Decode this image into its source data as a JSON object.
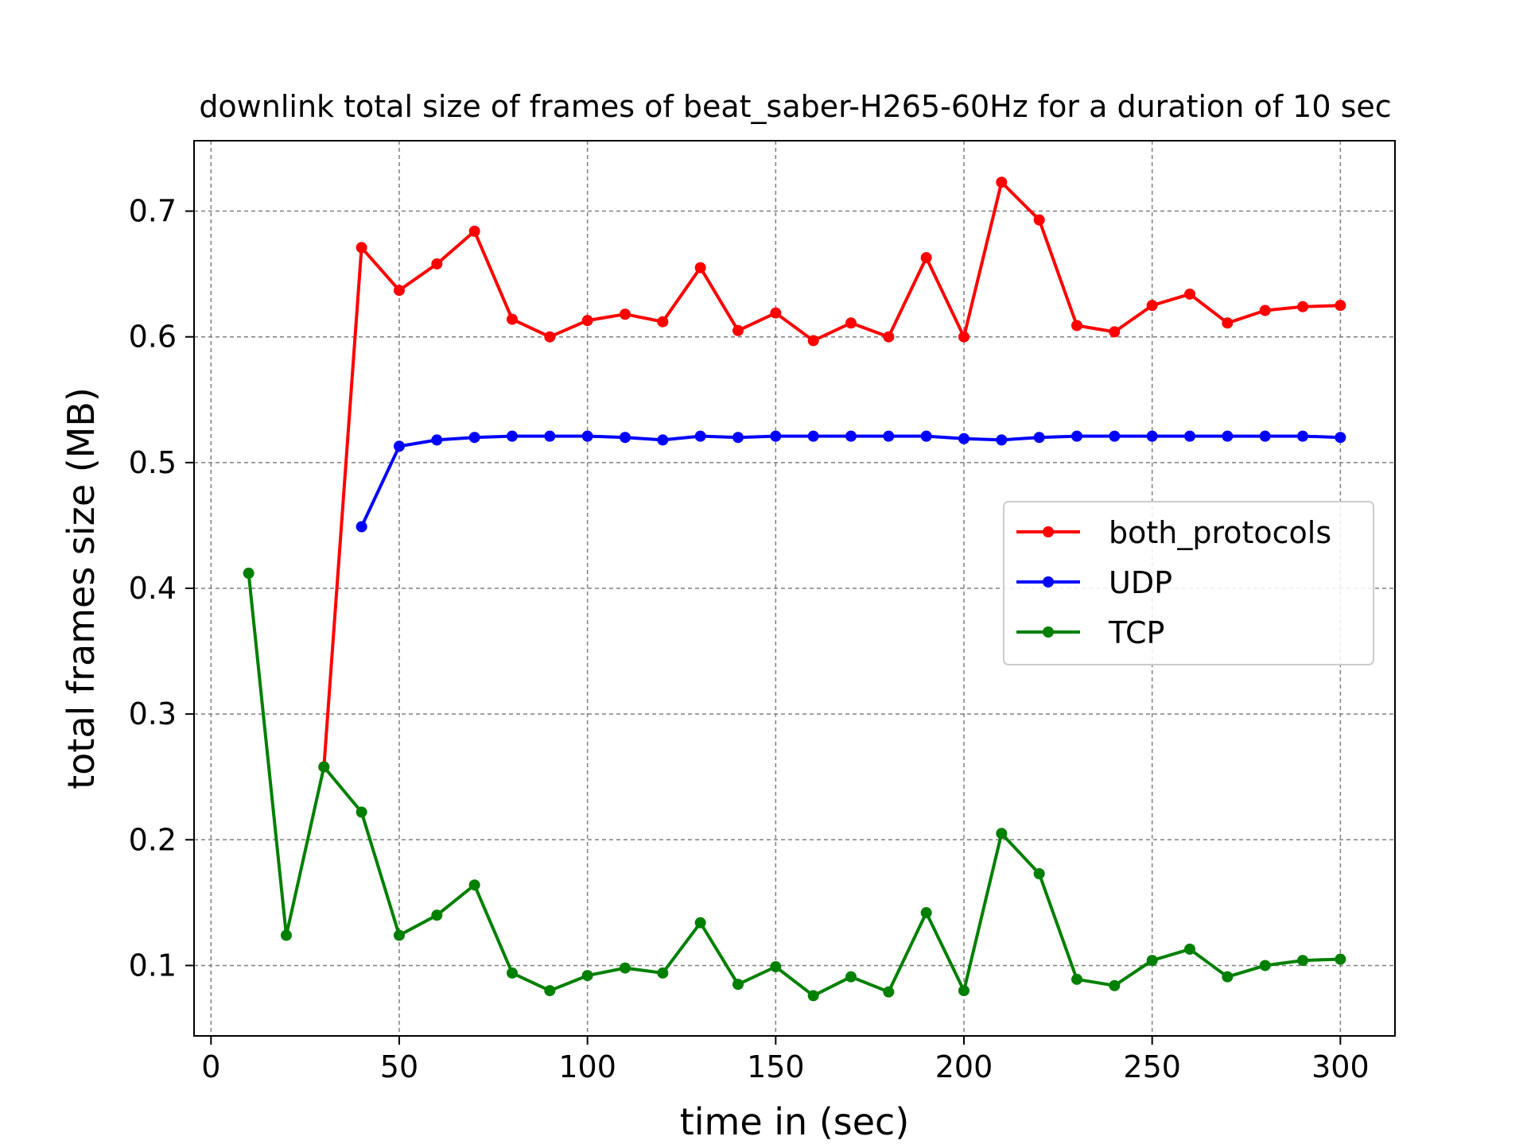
{
  "chart_data": {
    "type": "line",
    "title": "downlink total size of frames of beat_saber-H265-60Hz for a duration of 10 sec",
    "xlabel": "time in (sec)",
    "ylabel": "total frames size (MB)",
    "xlim": [
      -4.5,
      314.5
    ],
    "ylim": [
      0.044,
      0.756
    ],
    "xticks": [
      0,
      50,
      100,
      150,
      200,
      250,
      300
    ],
    "xtick_labels": [
      "0",
      "50",
      "100",
      "150",
      "200",
      "250",
      "300"
    ],
    "yticks": [
      0.1,
      0.2,
      0.3,
      0.4,
      0.5,
      0.6,
      0.7
    ],
    "ytick_labels": [
      "0.1",
      "0.2",
      "0.3",
      "0.4",
      "0.5",
      "0.6",
      "0.7"
    ],
    "grid": true,
    "legend_position": "center-right",
    "series": [
      {
        "name": "both_protocols",
        "color": "#ff0000",
        "x": [
          30,
          40,
          50,
          60,
          70,
          80,
          90,
          100,
          110,
          120,
          130,
          140,
          150,
          160,
          170,
          180,
          190,
          200,
          210,
          220,
          230,
          240,
          250,
          260,
          270,
          280,
          290,
          300
        ],
        "values": [
          0.258,
          0.671,
          0.637,
          0.658,
          0.684,
          0.614,
          0.6,
          0.613,
          0.618,
          0.612,
          0.655,
          0.605,
          0.619,
          0.597,
          0.611,
          0.6,
          0.663,
          0.6,
          0.723,
          0.693,
          0.609,
          0.604,
          0.625,
          0.634,
          0.611,
          0.621,
          0.624,
          0.625
        ]
      },
      {
        "name": "UDP",
        "color": "#0000ff",
        "x": [
          40,
          50,
          60,
          70,
          80,
          90,
          100,
          110,
          120,
          130,
          140,
          150,
          160,
          170,
          180,
          190,
          200,
          210,
          220,
          230,
          240,
          250,
          260,
          270,
          280,
          290,
          300
        ],
        "values": [
          0.449,
          0.513,
          0.518,
          0.52,
          0.521,
          0.521,
          0.521,
          0.52,
          0.518,
          0.521,
          0.52,
          0.521,
          0.521,
          0.521,
          0.521,
          0.521,
          0.519,
          0.518,
          0.52,
          0.521,
          0.521,
          0.521,
          0.521,
          0.521,
          0.521,
          0.521,
          0.52
        ]
      },
      {
        "name": "TCP",
        "color": "#008000",
        "x": [
          10,
          20,
          30,
          40,
          50,
          60,
          70,
          80,
          90,
          100,
          110,
          120,
          130,
          140,
          150,
          160,
          170,
          180,
          190,
          200,
          210,
          220,
          230,
          240,
          250,
          260,
          270,
          280,
          290,
          300
        ],
        "values": [
          0.412,
          0.124,
          0.258,
          0.222,
          0.124,
          0.14,
          0.164,
          0.094,
          0.08,
          0.092,
          0.098,
          0.094,
          0.134,
          0.085,
          0.099,
          0.076,
          0.091,
          0.079,
          0.142,
          0.08,
          0.205,
          0.173,
          0.089,
          0.084,
          0.104,
          0.113,
          0.091,
          0.1,
          0.104,
          0.105
        ]
      }
    ]
  }
}
